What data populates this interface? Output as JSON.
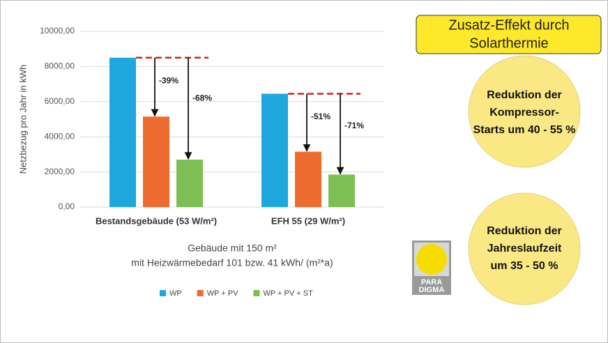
{
  "chart_data": {
    "type": "bar",
    "categories": [
      "Bestandsgebäude (53 W/m²)",
      "EFH 55 (29 W/m²)"
    ],
    "series": [
      {
        "name": "WP",
        "color": "#1ea6df",
        "values": [
          8500,
          6450
        ]
      },
      {
        "name": "WP + PV",
        "color": "#ee6b2f",
        "values": [
          5150,
          3150
        ]
      },
      {
        "name": "WP + PV + ST",
        "color": "#7dbf55",
        "values": [
          2700,
          1850
        ]
      }
    ],
    "annotations": [
      [
        "-39%",
        "-68%"
      ],
      [
        "-51%",
        "-71%"
      ]
    ],
    "ylabel": "Netzbezug pro Jahr in kWh",
    "xlabel": [
      "Gebäude mit 150 m²",
      "mit Heizwärmebedarf 101 bzw. 41 kWh/ (m²*a)"
    ],
    "ylim": [
      0,
      10000
    ],
    "yticks": [
      {
        "value": 0,
        "label": "0,00"
      },
      {
        "value": 2000,
        "label": "2000,00"
      },
      {
        "value": 4000,
        "label": "4000,00"
      },
      {
        "value": 6000,
        "label": "6000,00"
      },
      {
        "value": 8000,
        "label": "8000,00"
      },
      {
        "value": 10000,
        "label": "10000,00"
      }
    ],
    "grid": true
  },
  "sidebar": {
    "heading": [
      "Zusatz-Effekt durch",
      "Solarthermie"
    ],
    "circles": [
      [
        "Reduktion der",
        "Kompressor-",
        "Starts um 40 - 55 %"
      ],
      [
        "Reduktion der",
        "Jahreslaufzeit",
        "um 35 - 50 %"
      ]
    ],
    "logo": [
      "PARA",
      "DIGMA"
    ]
  }
}
